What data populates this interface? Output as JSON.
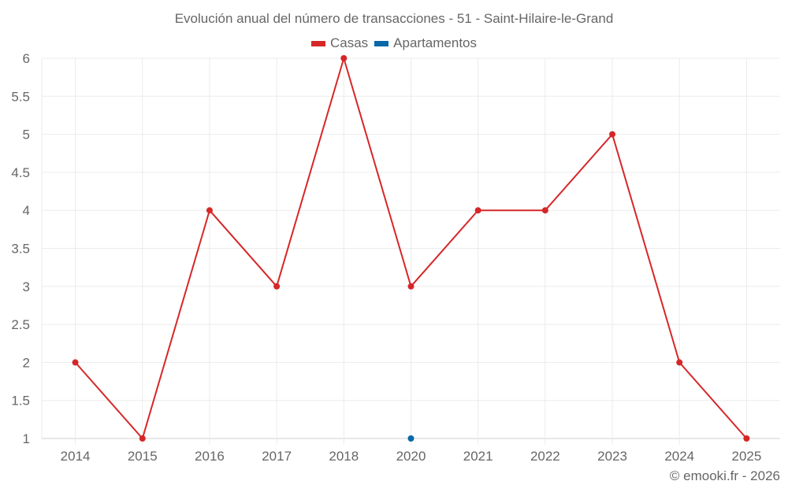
{
  "chart_data": {
    "type": "line",
    "title": "Evolución anual del número de transacciones - 51 - Saint-Hilaire-le-Grand",
    "xlabel": "",
    "ylabel": "",
    "categories": [
      "2014",
      "2015",
      "2016",
      "2017",
      "2018",
      "2020",
      "2021",
      "2022",
      "2023",
      "2024",
      "2025"
    ],
    "series": [
      {
        "name": "Casas",
        "color": "#d62728",
        "values": [
          2,
          1,
          4,
          3,
          6,
          3,
          4,
          4,
          5,
          2,
          1
        ]
      },
      {
        "name": "Apartamentos",
        "color": "#0868a8",
        "values": [
          null,
          null,
          null,
          null,
          null,
          1,
          null,
          null,
          null,
          null,
          null
        ]
      }
    ],
    "ylim": [
      1,
      6
    ],
    "yticks": [
      "1",
      "1.5",
      "2",
      "2.5",
      "3",
      "3.5",
      "4",
      "4.5",
      "5",
      "5.5",
      "6"
    ],
    "grid": true,
    "legend_position": "top"
  },
  "legend": {
    "items": [
      {
        "label": "Casas",
        "color": "#d62728"
      },
      {
        "label": "Apartamentos",
        "color": "#0868a8"
      }
    ]
  },
  "credit": "© emooki.fr - 2026"
}
